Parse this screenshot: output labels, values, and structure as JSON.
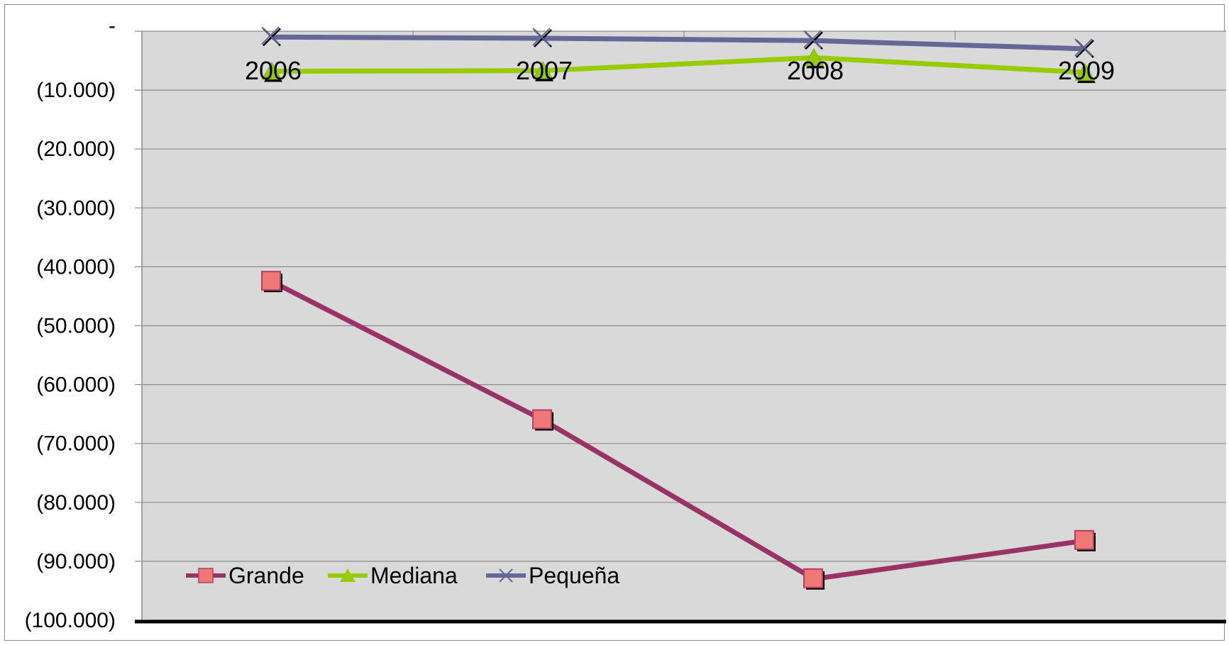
{
  "chart_data": {
    "type": "line",
    "categories": [
      "2006",
      "2007",
      "2008",
      "2009"
    ],
    "ylim": [
      -100000,
      0
    ],
    "yticks": [
      {
        "value": 0,
        "label": "-"
      },
      {
        "value": -10000,
        "label": "(10.000)"
      },
      {
        "value": -20000,
        "label": "(20.000)"
      },
      {
        "value": -30000,
        "label": "(30.000)"
      },
      {
        "value": -40000,
        "label": "(40.000)"
      },
      {
        "value": -50000,
        "label": "(50.000)"
      },
      {
        "value": -60000,
        "label": "(60.000)"
      },
      {
        "value": -70000,
        "label": "(70.000)"
      },
      {
        "value": -80000,
        "label": "(80.000)"
      },
      {
        "value": -90000,
        "label": "(90.000)"
      },
      {
        "value": -100000,
        "label": "(100.000)"
      }
    ],
    "grid": true,
    "legend_position": "bottom-left",
    "series": [
      {
        "name": "Grande",
        "values": [
          -42500,
          -66000,
          -93000,
          -86500
        ],
        "color": "#993366",
        "marker": "square",
        "marker_color": "#ee7777"
      },
      {
        "name": "Mediana",
        "values": [
          -6800,
          -6700,
          -4500,
          -7000
        ],
        "color": "#99cc00",
        "marker": "triangle",
        "marker_color": "#99cc00"
      },
      {
        "name": "Pequeña",
        "values": [
          -1000,
          -1200,
          -1600,
          -3000
        ],
        "color": "#666699",
        "marker": "x",
        "marker_color": "#666699"
      }
    ],
    "plot_background": "#d9d9d9",
    "gridline_color": "#8c8c8c"
  }
}
